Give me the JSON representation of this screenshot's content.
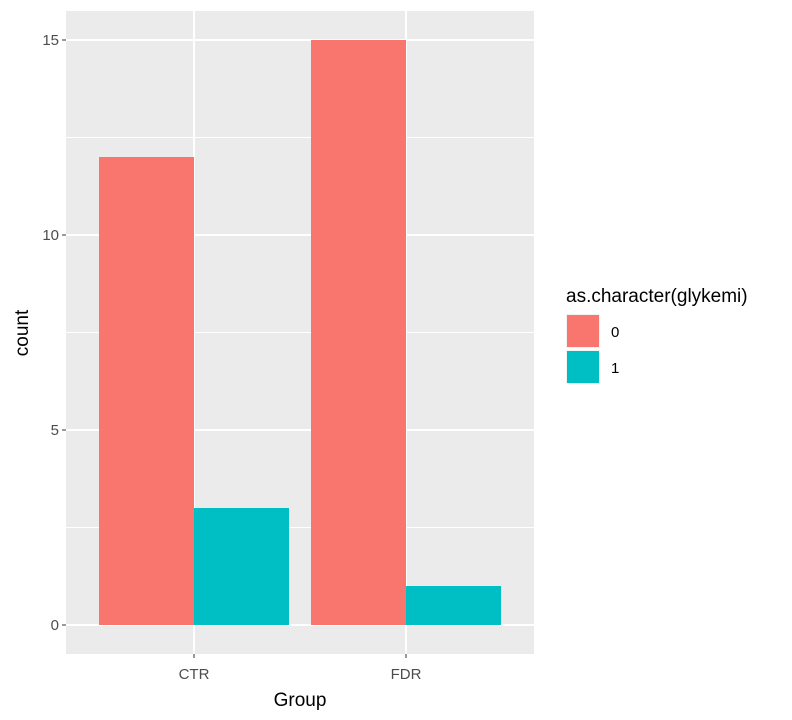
{
  "chart_data": {
    "type": "bar",
    "title": "",
    "xlabel": "Group",
    "ylabel": "count",
    "categories": [
      "CTR",
      "FDR"
    ],
    "series": [
      {
        "name": "0",
        "values": [
          12,
          15
        ],
        "color": "#F8766D"
      },
      {
        "name": "1",
        "values": [
          3,
          1
        ],
        "color": "#00BFC4"
      }
    ],
    "ylim": [
      0,
      15
    ],
    "yticks": [
      0,
      5,
      10,
      15
    ],
    "legend": {
      "title": "as.character(glykemi)",
      "position": "right"
    },
    "grid": true,
    "panel_background": "#EBEBEB",
    "grid_color": "#FFFFFF"
  }
}
